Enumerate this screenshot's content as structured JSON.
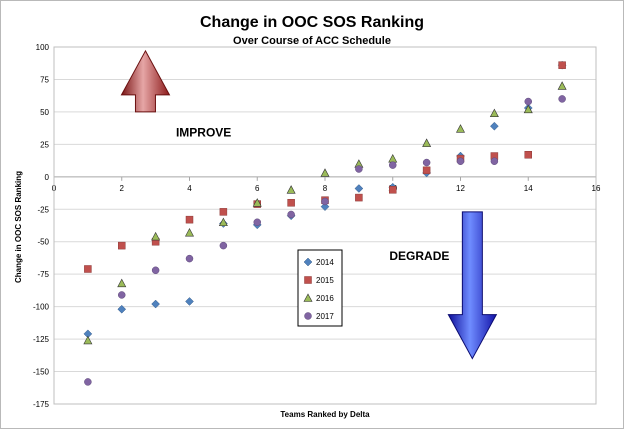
{
  "chart_data": {
    "type": "scatter",
    "title": "Change in OOC SOS Ranking",
    "subtitle": "Over Course of ACC Schedule",
    "xlabel": "Teams Ranked by Delta",
    "ylabel": "Change in OOC SOS Ranking",
    "xlim": [
      0,
      16
    ],
    "ylim": [
      -175,
      100
    ],
    "xticks": [
      0,
      2,
      4,
      6,
      8,
      10,
      12,
      14,
      16
    ],
    "yticks": [
      100,
      75,
      50,
      25,
      0,
      -25,
      -50,
      -75,
      -100,
      -125,
      -150,
      -175
    ],
    "grid": "horizontal",
    "legend_position": "center",
    "annotations": [
      {
        "text": "IMPROVE",
        "arrow": "up",
        "color": "#9b2020"
      },
      {
        "text": "DEGRADE",
        "arrow": "down",
        "color": "#1f1fcf"
      }
    ],
    "series": [
      {
        "name": "2014",
        "marker": "diamond",
        "color": "#4f81bd",
        "points": [
          [
            1,
            -121
          ],
          [
            2,
            -102
          ],
          [
            3,
            -98
          ],
          [
            4,
            -96
          ],
          [
            5,
            -36
          ],
          [
            6,
            -37
          ],
          [
            7,
            -30
          ],
          [
            8,
            -23
          ],
          [
            9,
            -9
          ],
          [
            10,
            -8
          ],
          [
            11,
            3
          ],
          [
            12,
            16
          ],
          [
            13,
            39
          ],
          [
            14,
            53
          ],
          [
            15,
            86
          ]
        ]
      },
      {
        "name": "2015",
        "marker": "square",
        "color": "#c0504d",
        "points": [
          [
            1,
            -71
          ],
          [
            2,
            -53
          ],
          [
            3,
            -50
          ],
          [
            4,
            -33
          ],
          [
            5,
            -27
          ],
          [
            6,
            -21
          ],
          [
            7,
            -20
          ],
          [
            8,
            -18
          ],
          [
            9,
            -16
          ],
          [
            10,
            -10
          ],
          [
            11,
            5
          ],
          [
            12,
            14
          ],
          [
            13,
            16
          ],
          [
            14,
            17
          ],
          [
            15,
            86
          ]
        ]
      },
      {
        "name": "2016",
        "marker": "triangle",
        "color": "#9bbb59",
        "points": [
          [
            1,
            -126
          ],
          [
            2,
            -82
          ],
          [
            3,
            -46
          ],
          [
            4,
            -43
          ],
          [
            5,
            -35
          ],
          [
            6,
            -20
          ],
          [
            7,
            -10
          ],
          [
            8,
            3
          ],
          [
            9,
            10
          ],
          [
            10,
            14
          ],
          [
            11,
            26
          ],
          [
            12,
            37
          ],
          [
            13,
            49
          ],
          [
            14,
            52
          ],
          [
            15,
            70
          ]
        ]
      },
      {
        "name": "2017",
        "marker": "circle",
        "color": "#8064a2",
        "points": [
          [
            1,
            -158
          ],
          [
            2,
            -91
          ],
          [
            3,
            -72
          ],
          [
            4,
            -63
          ],
          [
            5,
            -53
          ],
          [
            6,
            -35
          ],
          [
            7,
            -29
          ],
          [
            8,
            -19
          ],
          [
            9,
            6
          ],
          [
            10,
            9
          ],
          [
            11,
            11
          ],
          [
            12,
            12
          ],
          [
            13,
            12
          ],
          [
            14,
            58
          ],
          [
            15,
            60
          ]
        ]
      }
    ]
  }
}
